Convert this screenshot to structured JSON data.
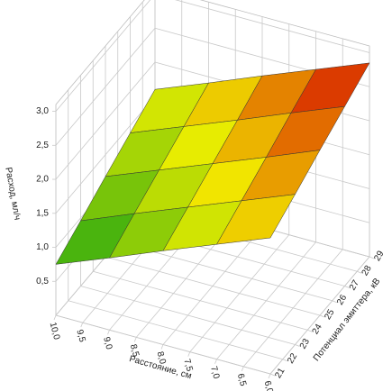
{
  "chart_data": {
    "type": "surface",
    "x_label": "Расстояние, см",
    "y_label": "Потенциал эмиттера, кВ",
    "z_label": "Расход, мл/ч",
    "x": [
      10,
      9,
      8,
      7,
      6
    ],
    "y": [
      21,
      23,
      25,
      27,
      29
    ],
    "z": [
      [
        0.75,
        0.96,
        1.18,
        1.39,
        1.6
      ],
      [
        1.06,
        1.28,
        1.49,
        1.7,
        1.91
      ],
      [
        1.38,
        1.59,
        1.8,
        2.01,
        2.23
      ],
      [
        1.69,
        1.9,
        2.11,
        2.33,
        2.54
      ],
      [
        2.0,
        2.21,
        2.43,
        2.64,
        2.85
      ]
    ],
    "xlim": [
      10,
      6
    ],
    "ylim": [
      21,
      29
    ],
    "zlim": [
      0,
      3.1
    ],
    "xticks": [
      {
        "value": 10,
        "label": "10,0"
      },
      {
        "value": 9.5,
        "label": "9,5"
      },
      {
        "value": 9,
        "label": "9,0"
      },
      {
        "value": 8.5,
        "label": "8,5"
      },
      {
        "value": 8,
        "label": "8,0"
      },
      {
        "value": 7.5,
        "label": "7,5"
      },
      {
        "value": 7,
        "label": "7,0"
      },
      {
        "value": 6.5,
        "label": "6,5"
      },
      {
        "value": 6,
        "label": "6,0"
      }
    ],
    "yticks": [
      21,
      22,
      23,
      24,
      25,
      26,
      27,
      28,
      29
    ],
    "zticks": [
      {
        "value": 0.5,
        "label": "0,5"
      },
      {
        "value": 1,
        "label": "1,0"
      },
      {
        "value": 1.5,
        "label": "1,5"
      },
      {
        "value": 2,
        "label": "2,0"
      },
      {
        "value": 2.5,
        "label": "2,5"
      },
      {
        "value": 3,
        "label": "3,0"
      }
    ],
    "colormap": [
      "#12a012",
      "#f2f000",
      "#d40000"
    ],
    "grid": true
  }
}
